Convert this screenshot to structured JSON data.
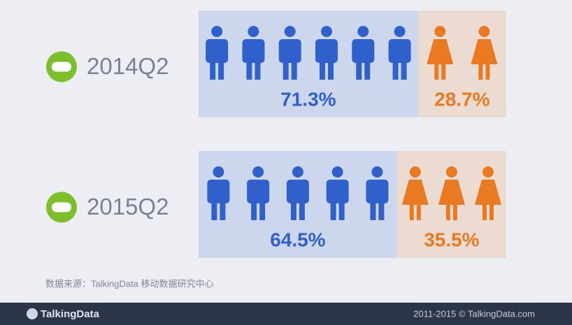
{
  "chart_data": {
    "type": "bar",
    "orientation": "horizontal",
    "stacked": true,
    "categories": [
      "2014Q2",
      "2015Q2"
    ],
    "xlim": [
      0,
      100
    ],
    "series": [
      {
        "color": "#2f60cc",
        "values": [
          71.3,
          64.5
        ],
        "value_labels": [
          "71.3%",
          "64.5%"
        ]
      },
      {
        "color": "#e97a22",
        "values": [
          28.7,
          35.5
        ],
        "value_labels": [
          "28.7%",
          "35.5%"
        ]
      }
    ],
    "source": "数据来源：TalkingData 移动数据研究中心",
    "footer_logo": "TalkingData",
    "footer_copyright": "2011-2015 © TalkingData.com"
  }
}
